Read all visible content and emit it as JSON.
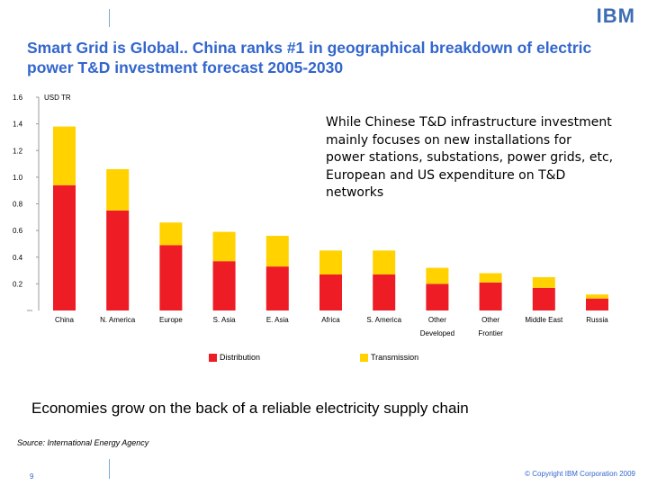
{
  "logo_text": "IBM",
  "title": "Smart Grid is Global.. China ranks #1 in geographical breakdown of electric power T&D investment forecast 2005-2030",
  "note": "While Chinese T&D infrastructure investment mainly focuses on new installations for power stations, substations, power grids, etc, European and US expenditure on T&D networks",
  "headline": "Economies grow on the back of a reliable electricity supply chain",
  "source": "Source: International Energy Agency",
  "page_number": "9",
  "copyright": "© Copyright IBM Corporation 2009",
  "colors": {
    "distribution": "#ee1c25",
    "transmission": "#ffd200",
    "title": "#3366cc"
  },
  "chart_data": {
    "type": "bar",
    "stacked": true,
    "ylabel": "USD TR",
    "ylim": [
      0,
      1.6
    ],
    "yticks": [
      "0.2",
      "0.4",
      "0.6",
      "0.8",
      "1.0",
      "1.2",
      "1.4",
      "1.6"
    ],
    "ytick_values": [
      0.2,
      0.4,
      0.6,
      0.8,
      1.0,
      1.2,
      1.4,
      1.6
    ],
    "categories": [
      "China",
      "N. America",
      "Europe",
      "S. Asia",
      "E. Asia",
      "Africa",
      "S. America",
      "Other Developed",
      "Other Frontier",
      "Middle East",
      "Russia"
    ],
    "category_lines": [
      [
        "China"
      ],
      [
        "N. America"
      ],
      [
        "Europe"
      ],
      [
        "S. Asia"
      ],
      [
        "E. Asia"
      ],
      [
        "Africa"
      ],
      [
        "S. America"
      ],
      [
        "Other",
        "Developed"
      ],
      [
        "Other",
        "Frontier"
      ],
      [
        "Middle East"
      ],
      [
        "Russia"
      ]
    ],
    "series": [
      {
        "name": "Distribution",
        "color": "#ee1c25",
        "values": [
          0.94,
          0.75,
          0.49,
          0.37,
          0.33,
          0.27,
          0.27,
          0.2,
          0.21,
          0.17,
          0.09
        ]
      },
      {
        "name": "Transmission",
        "color": "#ffd200",
        "values": [
          0.44,
          0.31,
          0.17,
          0.22,
          0.23,
          0.18,
          0.18,
          0.12,
          0.07,
          0.08,
          0.03
        ]
      }
    ],
    "legend_position": "bottom"
  }
}
